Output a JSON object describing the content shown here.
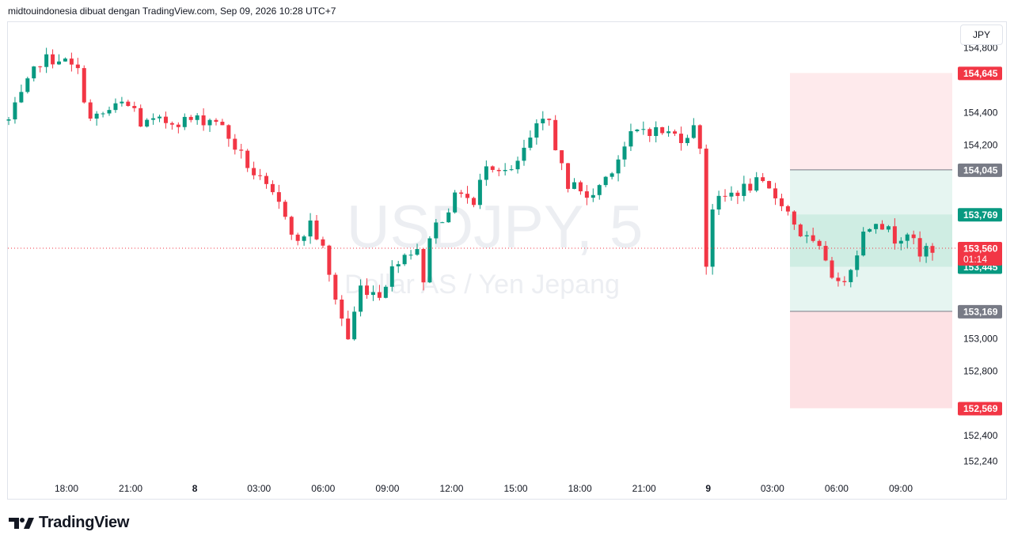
{
  "header": {
    "attribution": "midtouindonesia dibuat dengan TradingView.com, Sep 09, 2026 10:28 UTC+7"
  },
  "currency_button": {
    "label": "JPY"
  },
  "watermark": {
    "symbol": "USDJPY, 5",
    "description": "Dollar AS / Yen Jepang"
  },
  "footer": {
    "brand": "TradingView",
    "icon": "tradingview-logo-icon"
  },
  "colors": {
    "up": "#089981",
    "down": "#f23645",
    "grid_text": "#131722",
    "target_zone": "#e6f5f1",
    "target_inner": "#c9ebe0",
    "stop_zone": "#fde1e4",
    "badge_gray": "#787b86",
    "badge_green": "#089981",
    "badge_red": "#f23645"
  },
  "chart_data": {
    "type": "candlestick",
    "symbol": "USDJPY",
    "timeframe": "5",
    "y_axis": {
      "ticks": [
        "154,800",
        "154,400",
        "154,200",
        "153,000",
        "152,800",
        "152,400",
        "152,240"
      ],
      "range": [
        152.16,
        154.96
      ]
    },
    "x_axis": {
      "ticks": [
        "18:00",
        "21:00",
        "8",
        "03:00",
        "06:00",
        "09:00",
        "12:00",
        "15:00",
        "18:00",
        "21:00",
        "9",
        "03:00",
        "06:00",
        "09:00"
      ]
    },
    "price_path": [
      [
        0,
        154.35
      ],
      [
        5,
        154.72
      ],
      [
        8,
        154.74
      ],
      [
        11,
        154.65
      ],
      [
        13,
        154.35
      ],
      [
        18,
        154.45
      ],
      [
        20,
        154.42
      ],
      [
        21,
        154.33
      ],
      [
        27,
        154.35
      ],
      [
        33,
        154.36
      ],
      [
        34,
        154.3
      ],
      [
        39,
        154.02
      ],
      [
        44,
        153.78
      ],
      [
        46,
        153.58
      ],
      [
        48,
        153.72
      ],
      [
        50,
        153.55
      ],
      [
        51,
        153.38
      ],
      [
        54,
        153.0
      ],
      [
        56,
        153.32
      ],
      [
        59,
        153.28
      ],
      [
        62,
        153.5
      ],
      [
        65,
        153.57
      ],
      [
        66,
        153.32
      ],
      [
        67,
        153.65
      ],
      [
        72,
        153.92
      ],
      [
        74,
        153.82
      ],
      [
        76,
        154.1
      ],
      [
        80,
        154.02
      ],
      [
        84,
        154.3
      ],
      [
        86,
        154.35
      ],
      [
        89,
        153.9
      ],
      [
        90,
        154.0
      ],
      [
        92,
        153.85
      ],
      [
        95,
        154.0
      ],
      [
        99,
        154.25
      ],
      [
        101,
        154.3
      ],
      [
        104,
        154.28
      ],
      [
        107,
        154.25
      ],
      [
        109,
        154.3
      ],
      [
        110,
        154.2
      ],
      [
        111,
        153.46
      ],
      [
        112,
        153.82
      ],
      [
        115,
        153.9
      ],
      [
        119,
        153.96
      ],
      [
        120,
        153.94
      ],
      [
        123,
        153.85
      ],
      [
        126,
        153.65
      ],
      [
        130,
        153.5
      ],
      [
        132,
        153.32
      ],
      [
        134,
        153.45
      ],
      [
        136,
        153.65
      ],
      [
        138,
        153.75
      ],
      [
        141,
        153.62
      ],
      [
        143,
        153.67
      ],
      [
        145,
        153.5
      ],
      [
        146,
        153.56
      ],
      [
        147,
        153.56
      ]
    ],
    "candles_count": 148,
    "last_price": "153,560",
    "countdown": "01:14",
    "position_tool": {
      "entry": 154.045,
      "target_1": 153.769,
      "target_2": 153.445,
      "stop_levels": [
        154.645,
        152.569
      ],
      "mid_line": 153.169,
      "labels": {
        "top_stop": "154,645",
        "entry": "154,045",
        "target_1": "153,769",
        "last": "153,560",
        "target_2": "153,445",
        "mid": "153,169",
        "bottom_stop": "152,569"
      }
    }
  }
}
